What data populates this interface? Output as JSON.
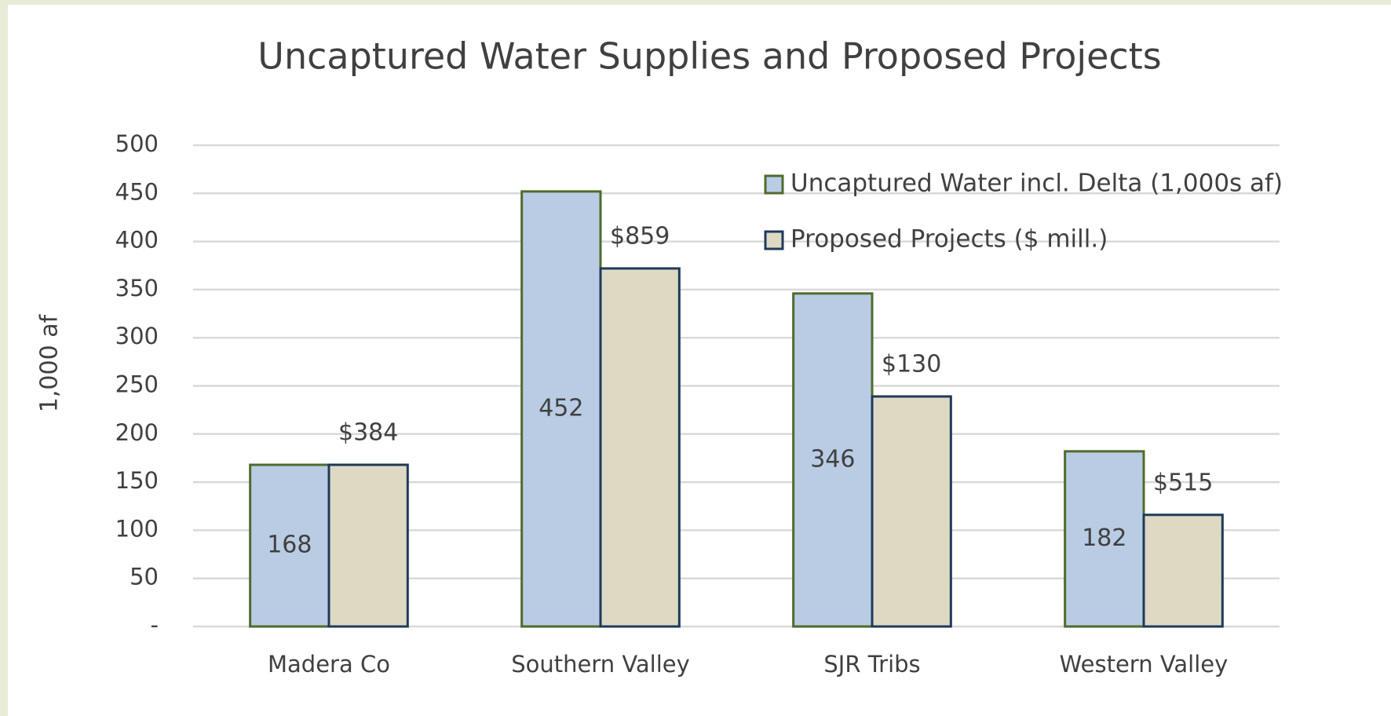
{
  "chart_data": {
    "type": "bar",
    "title": "Uncaptured Water Supplies and Proposed Projects",
    "y_label": "1,000 af",
    "categories": [
      "Madera Co",
      "Southern Valley",
      "SJR Tribs",
      "Western Valley"
    ],
    "series": [
      {
        "name": "Uncaptured Water incl. Delta (1,000s af)",
        "color": "#b9cce4",
        "edge": "#4f6b2c",
        "values": [
          168,
          452,
          346,
          182
        ],
        "label_position": "center"
      },
      {
        "name": "Proposed Projects ($ mill.)",
        "color": "#ddd9c3",
        "edge": "#1f3a5a",
        "values": [
          168,
          372,
          239,
          116
        ],
        "value_labels": [
          "$384",
          "$859",
          "$130",
          "$515"
        ],
        "label_position": "outside"
      }
    ],
    "ylim": [
      0,
      500
    ],
    "yticks": [
      {
        "value": 0,
        "label": "-"
      },
      50,
      100,
      150,
      200,
      250,
      300,
      350,
      400,
      450,
      500
    ],
    "grid": true,
    "legend": "top-right"
  }
}
